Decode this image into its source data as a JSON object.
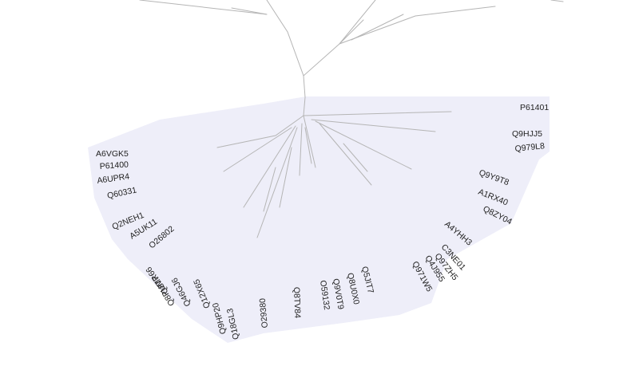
{
  "colors": {
    "background": "#ffffff",
    "highlight": "#eeeef9",
    "branch": "#b5b5b5",
    "label": "#222222"
  },
  "labels": {
    "P61401": "P61401",
    "Q9HJJ5": "Q9HJJ5",
    "Q979L8": "Q979L8",
    "Q9Y9T8": "Q9Y9T8",
    "A1RX40": "A1RX40",
    "Q8ZY04": "Q8ZY04",
    "A4YHH3": "A4YHH3",
    "C3NE01": "C3NE01",
    "Q97ZH5": "Q97ZH5",
    "Q4J955": "Q4J955",
    "Q971W5": "Q971W5",
    "Q5JIT7": "Q5JIT7",
    "Q8U0X0": "Q8U0X0",
    "Q9V0T9": "Q9V0T9",
    "O59132": "O59132",
    "Q8TV84": "Q8TV84",
    "O29380": "O29380",
    "Q18GL3": "Q18GL3",
    "Q9HP20": "Q9HP20",
    "Q12X65": "Q12X65",
    "Q46GJ6": "Q46GJ6",
    "Q8PUM7": "Q8PUM7",
    "Q8TR66": "Q8TR66",
    "O26802": "O26802",
    "A5UK11": "A5UK11",
    "Q2NEH1": "Q2NEH1",
    "Q60331": "Q60331",
    "A6UPR4": "A6UPR4",
    "P61400": "P61400",
    "A6VGK5": "A6VGK5"
  }
}
